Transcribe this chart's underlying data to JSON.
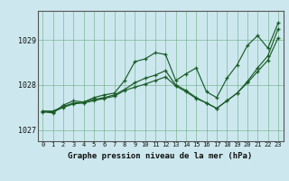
{
  "xlabel": "Graphe pression niveau de la mer (hPa)",
  "bg_color": "#cce8ee",
  "grid_color": "#6aaa80",
  "line_color": "#1a5c28",
  "xlim": [
    -0.5,
    23.5
  ],
  "ylim": [
    1026.75,
    1029.65
  ],
  "yticks": [
    1027,
    1028,
    1029
  ],
  "xticks": [
    0,
    1,
    2,
    3,
    4,
    5,
    6,
    7,
    8,
    9,
    10,
    11,
    12,
    13,
    14,
    15,
    16,
    17,
    18,
    19,
    20,
    21,
    22,
    23
  ],
  "series": [
    [
      1027.42,
      1027.42,
      1027.52,
      1027.6,
      1027.62,
      1027.68,
      1027.72,
      1027.78,
      1027.9,
      1028.05,
      1028.15,
      1028.22,
      1028.32,
      1028.0,
      1027.88,
      1027.72,
      1027.6,
      1027.48,
      1027.65,
      1027.82,
      1028.08,
      1028.38,
      1028.65,
      1029.25
    ],
    [
      1027.42,
      1027.4,
      1027.5,
      1027.58,
      1027.6,
      1027.65,
      1027.7,
      1027.75,
      1027.88,
      1027.95,
      1028.02,
      1028.1,
      1028.18,
      1027.98,
      1027.85,
      1027.7,
      1027.6,
      1027.48,
      1027.65,
      1027.82,
      1028.05,
      1028.3,
      1028.55,
      1029.05
    ],
    [
      1027.4,
      1027.38,
      1027.55,
      1027.65,
      1027.62,
      1027.72,
      1027.78,
      1027.82,
      1028.1,
      1028.52,
      1028.58,
      1028.72,
      1028.68,
      1028.1,
      1028.25,
      1028.38,
      1027.85,
      1027.72,
      1028.15,
      1028.45,
      1028.88,
      1029.1,
      1028.82,
      1029.38
    ]
  ]
}
